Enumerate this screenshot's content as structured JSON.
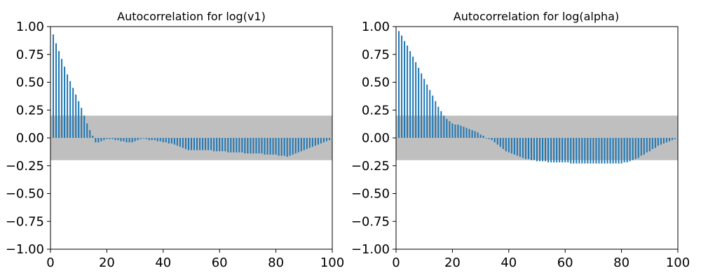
{
  "chart_data": [
    {
      "type": "bar",
      "title": "Autocorrelation for log(v1)",
      "xlim": [
        0,
        100
      ],
      "ylim": [
        -1.0,
        1.0
      ],
      "x_ticks": [
        0,
        20,
        40,
        60,
        80,
        100
      ],
      "y_ticks": [
        "−1.00",
        "−0.75",
        "−0.50",
        "−0.25",
        "0.00",
        "0.25",
        "0.50",
        "0.75",
        "1.00"
      ],
      "y_tick_values": [
        -1.0,
        -0.75,
        -0.5,
        -0.25,
        0.0,
        0.25,
        0.5,
        0.75,
        1.0
      ],
      "confidence_band": [
        -0.2,
        0.2
      ],
      "bar_color": "#1f77b4",
      "band_color": "#bfbfbf",
      "lags": [
        1,
        2,
        3,
        4,
        5,
        6,
        7,
        8,
        9,
        10,
        11,
        12,
        13,
        14,
        15,
        16,
        17,
        18,
        19,
        20,
        21,
        22,
        23,
        24,
        25,
        26,
        27,
        28,
        29,
        30,
        31,
        32,
        33,
        34,
        35,
        36,
        37,
        38,
        39,
        40,
        41,
        42,
        43,
        44,
        45,
        46,
        47,
        48,
        49,
        50,
        51,
        52,
        53,
        54,
        55,
        56,
        57,
        58,
        59,
        60,
        61,
        62,
        63,
        64,
        65,
        66,
        67,
        68,
        69,
        70,
        71,
        72,
        73,
        74,
        75,
        76,
        77,
        78,
        79,
        80,
        81,
        82,
        83,
        84,
        85,
        86,
        87,
        88,
        89,
        90,
        91,
        92,
        93,
        94,
        95,
        96,
        97,
        98,
        99
      ],
      "values": [
        0.93,
        0.85,
        0.78,
        0.71,
        0.64,
        0.57,
        0.51,
        0.45,
        0.39,
        0.33,
        0.27,
        0.2,
        0.13,
        0.07,
        0.02,
        -0.04,
        -0.04,
        -0.03,
        -0.02,
        -0.01,
        -0.01,
        -0.01,
        -0.02,
        -0.02,
        -0.03,
        -0.03,
        -0.04,
        -0.04,
        -0.04,
        -0.03,
        -0.02,
        -0.01,
        0.0,
        -0.01,
        -0.02,
        -0.02,
        -0.02,
        -0.03,
        -0.03,
        -0.04,
        -0.04,
        -0.05,
        -0.05,
        -0.06,
        -0.07,
        -0.08,
        -0.09,
        -0.1,
        -0.11,
        -0.11,
        -0.11,
        -0.11,
        -0.11,
        -0.11,
        -0.11,
        -0.11,
        -0.11,
        -0.12,
        -0.12,
        -0.12,
        -0.12,
        -0.12,
        -0.13,
        -0.13,
        -0.13,
        -0.13,
        -0.13,
        -0.13,
        -0.14,
        -0.14,
        -0.14,
        -0.14,
        -0.14,
        -0.14,
        -0.14,
        -0.15,
        -0.15,
        -0.15,
        -0.15,
        -0.15,
        -0.16,
        -0.16,
        -0.16,
        -0.17,
        -0.16,
        -0.15,
        -0.14,
        -0.13,
        -0.12,
        -0.11,
        -0.1,
        -0.09,
        -0.08,
        -0.07,
        -0.06,
        -0.05,
        -0.04,
        -0.03,
        -0.02
      ]
    },
    {
      "type": "bar",
      "title": "Autocorrelation for log(alpha)",
      "xlim": [
        0,
        100
      ],
      "ylim": [
        -1.0,
        1.0
      ],
      "x_ticks": [
        0,
        20,
        40,
        60,
        80,
        100
      ],
      "y_ticks": [
        "−1.00",
        "−0.75",
        "−0.50",
        "−0.25",
        "0.00",
        "0.25",
        "0.50",
        "0.75",
        "1.00"
      ],
      "y_tick_values": [
        -1.0,
        -0.75,
        -0.5,
        -0.25,
        0.0,
        0.25,
        0.5,
        0.75,
        1.0
      ],
      "confidence_band": [
        -0.2,
        0.2
      ],
      "bar_color": "#1f77b4",
      "band_color": "#bfbfbf",
      "lags": [
        1,
        2,
        3,
        4,
        5,
        6,
        7,
        8,
        9,
        10,
        11,
        12,
        13,
        14,
        15,
        16,
        17,
        18,
        19,
        20,
        21,
        22,
        23,
        24,
        25,
        26,
        27,
        28,
        29,
        30,
        31,
        32,
        33,
        34,
        35,
        36,
        37,
        38,
        39,
        40,
        41,
        42,
        43,
        44,
        45,
        46,
        47,
        48,
        49,
        50,
        51,
        52,
        53,
        54,
        55,
        56,
        57,
        58,
        59,
        60,
        61,
        62,
        63,
        64,
        65,
        66,
        67,
        68,
        69,
        70,
        71,
        72,
        73,
        74,
        75,
        76,
        77,
        78,
        79,
        80,
        81,
        82,
        83,
        84,
        85,
        86,
        87,
        88,
        89,
        90,
        91,
        92,
        93,
        94,
        95,
        96,
        97,
        98,
        99
      ],
      "values": [
        0.96,
        0.92,
        0.87,
        0.83,
        0.78,
        0.73,
        0.68,
        0.63,
        0.58,
        0.53,
        0.48,
        0.43,
        0.38,
        0.33,
        0.28,
        0.24,
        0.2,
        0.17,
        0.15,
        0.13,
        0.12,
        0.12,
        0.11,
        0.1,
        0.09,
        0.08,
        0.07,
        0.06,
        0.05,
        0.03,
        0.02,
        0.0,
        -0.01,
        -0.02,
        -0.04,
        -0.06,
        -0.08,
        -0.1,
        -0.12,
        -0.13,
        -0.14,
        -0.15,
        -0.16,
        -0.17,
        -0.18,
        -0.19,
        -0.19,
        -0.2,
        -0.2,
        -0.21,
        -0.21,
        -0.21,
        -0.21,
        -0.22,
        -0.22,
        -0.22,
        -0.22,
        -0.22,
        -0.22,
        -0.22,
        -0.22,
        -0.23,
        -0.23,
        -0.23,
        -0.23,
        -0.23,
        -0.23,
        -0.23,
        -0.23,
        -0.23,
        -0.23,
        -0.23,
        -0.23,
        -0.23,
        -0.23,
        -0.23,
        -0.23,
        -0.23,
        -0.23,
        -0.23,
        -0.22,
        -0.22,
        -0.21,
        -0.2,
        -0.19,
        -0.18,
        -0.16,
        -0.15,
        -0.13,
        -0.12,
        -0.1,
        -0.09,
        -0.07,
        -0.06,
        -0.05,
        -0.04,
        -0.03,
        -0.02,
        -0.01
      ]
    }
  ]
}
